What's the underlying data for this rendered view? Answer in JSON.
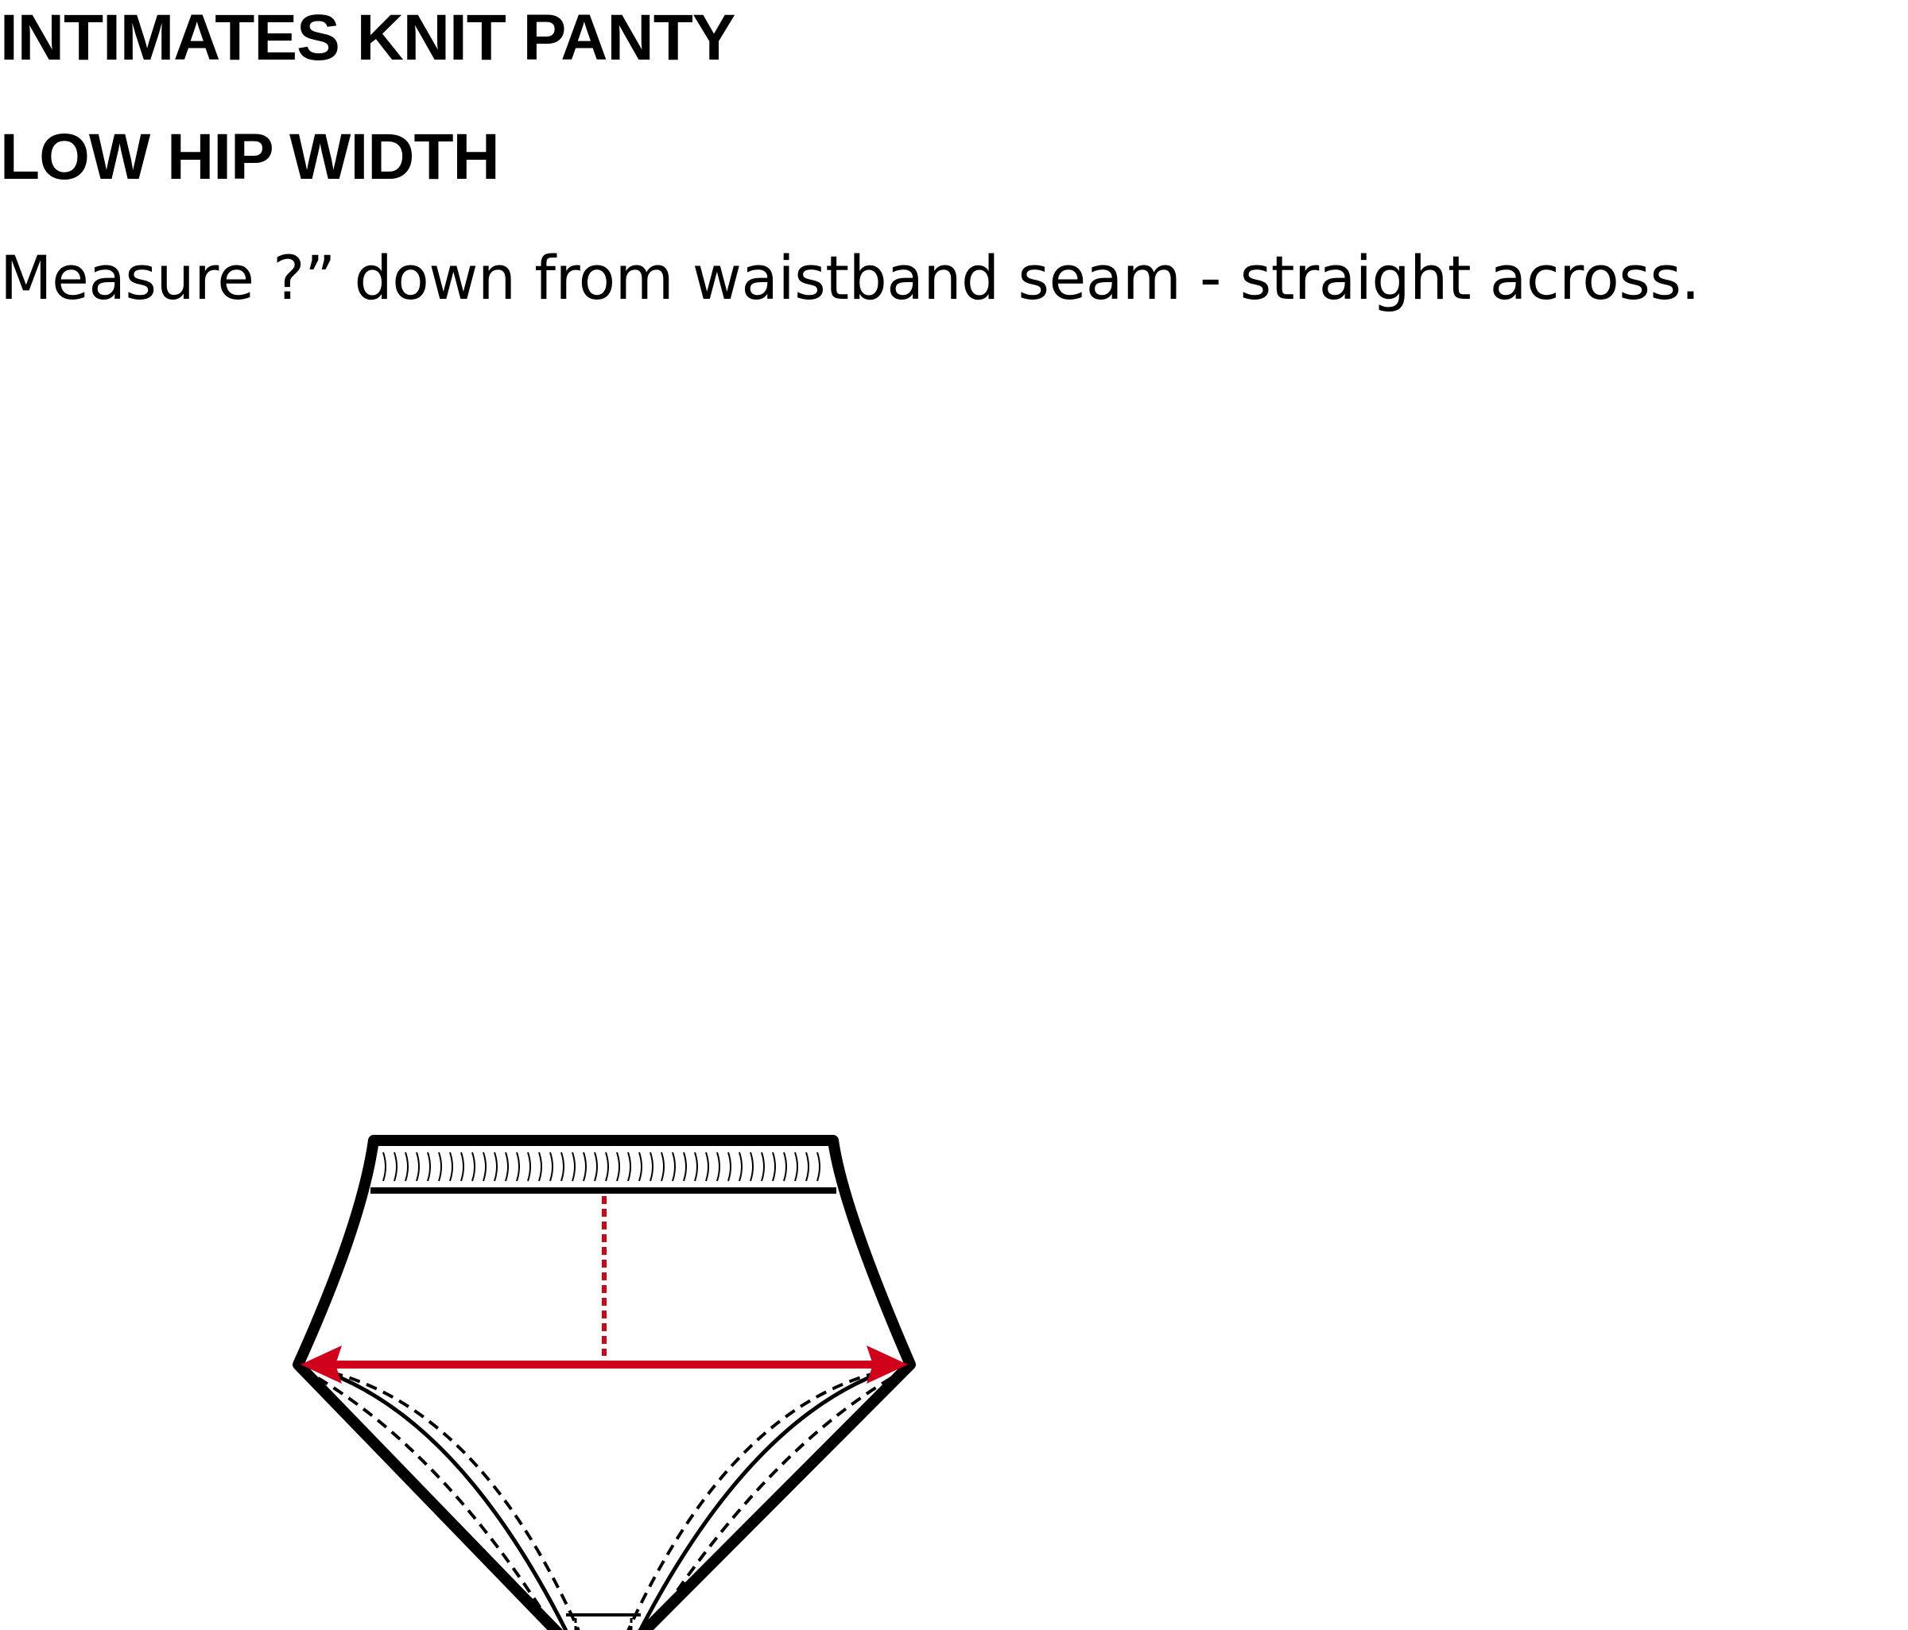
{
  "header": {
    "title": "INTIMATES KNIT PANTY",
    "subtitle": "LOW HIP WIDTH",
    "instruction": "Measure ?” down from waistband seam - straight across."
  },
  "diagram": {
    "garment": "knit-panty",
    "measurement": "low-hip-width",
    "colors": {
      "outline": "#000000",
      "measure_line": "#d0021b",
      "fill": "#ffffff"
    }
  }
}
